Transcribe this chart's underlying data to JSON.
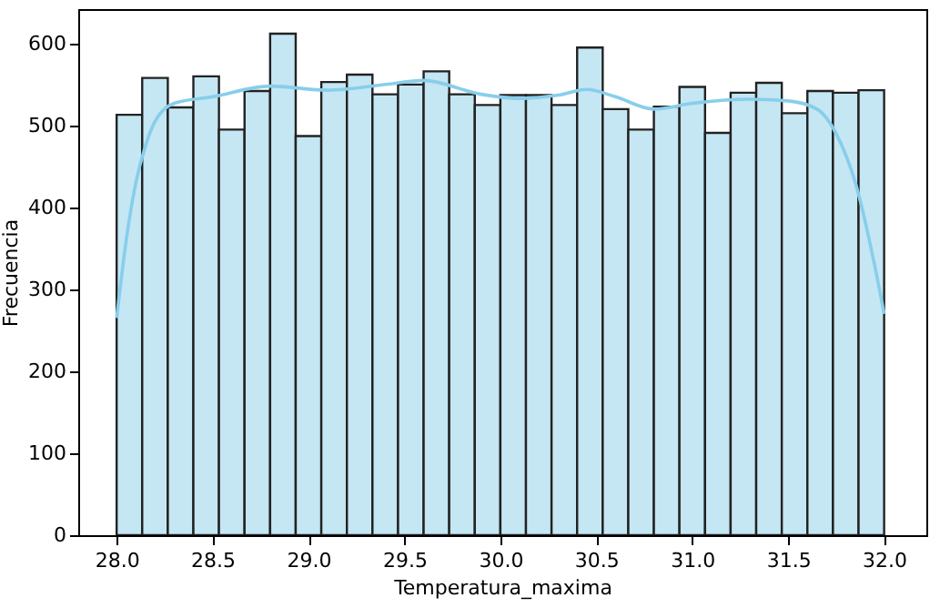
{
  "chart_data": {
    "type": "histogram",
    "xlabel": "Temperatura_maxima",
    "ylabel": "Frecuencia",
    "bins": [
      28.0,
      28.1333,
      28.2667,
      28.4,
      28.5333,
      28.6667,
      28.8,
      28.9333,
      29.0667,
      29.2,
      29.3333,
      29.4667,
      29.6,
      29.7333,
      29.8667,
      30.0,
      30.1333,
      30.2667,
      30.4,
      30.5333,
      30.6667,
      30.8,
      30.9333,
      31.0667,
      31.2,
      31.3333,
      31.4667,
      31.6,
      31.7333,
      31.8667,
      32.0
    ],
    "series": [
      {
        "type": "histogram",
        "color": "#c5e6f3",
        "values": [
          513,
          558,
          522,
          560,
          495,
          542,
          612,
          487,
          553,
          562,
          538,
          550,
          566,
          538,
          525,
          537,
          537,
          525,
          595,
          520,
          495,
          523,
          547,
          491,
          540,
          552,
          515,
          542,
          540,
          543
        ]
      },
      {
        "type": "line",
        "color": "#87ceeb",
        "x": [
          28.0,
          28.05,
          28.1,
          28.15,
          28.2,
          28.3,
          28.5,
          28.8,
          29.1,
          29.4,
          29.6,
          29.9,
          30.1,
          30.3,
          30.45,
          30.6,
          30.8,
          31.0,
          31.3,
          31.5,
          31.65,
          31.75,
          31.85,
          31.95,
          32.0
        ],
        "values": [
          265,
          360,
          430,
          475,
          505,
          527,
          535,
          548,
          543,
          550,
          555,
          538,
          533,
          537,
          544,
          535,
          520,
          527,
          532,
          530,
          520,
          490,
          430,
          330,
          270
        ]
      }
    ],
    "xlim": [
      27.8,
      32.22
    ],
    "xticks": [
      {
        "value": 28,
        "label": "28.0"
      },
      {
        "value": 28.5,
        "label": "28.5"
      },
      {
        "value": 29,
        "label": "29.0"
      },
      {
        "value": 29.5,
        "label": "29.5"
      },
      {
        "value": 30,
        "label": "30.0"
      },
      {
        "value": 30.5,
        "label": "30.5"
      },
      {
        "value": 31,
        "label": "31.0"
      },
      {
        "value": 31.5,
        "label": "31.5"
      },
      {
        "value": 32,
        "label": "32.0"
      }
    ],
    "ylim": [
      0,
      642
    ],
    "yticks": [
      0,
      100,
      200,
      300,
      400,
      500,
      600
    ]
  }
}
